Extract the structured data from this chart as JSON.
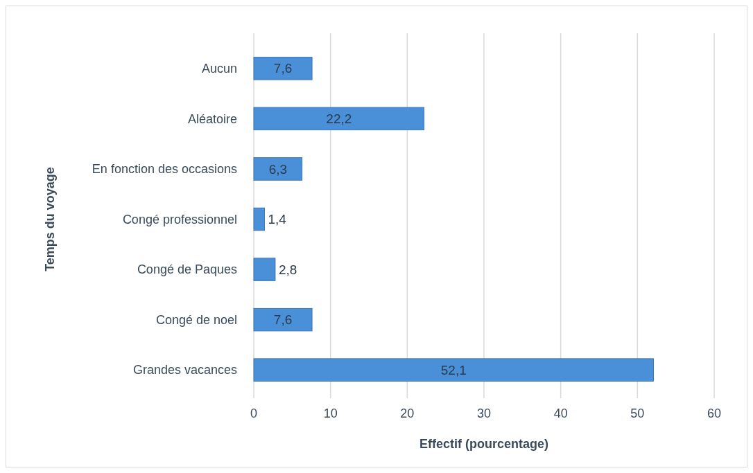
{
  "chart_data": {
    "type": "bar",
    "orientation": "horizontal",
    "xlabel": "Effectif (pourcentage)",
    "ylabel": "Temps du voyage",
    "categories": [
      "Aucun",
      "Aléatoire",
      "En fonction des occasions",
      "Congé professionnel",
      "Congé de Paques",
      "Congé de noel",
      "Grandes vacances"
    ],
    "values": [
      7.6,
      22.2,
      6.3,
      1.4,
      2.8,
      7.6,
      52.1
    ],
    "value_labels": [
      "7,6",
      "22,2",
      "6,3",
      "1,4",
      "2,8",
      "7,6",
      "52,1"
    ],
    "color": "#4a90d9",
    "xlim": [
      0,
      60
    ],
    "xticks": [
      0,
      10,
      20,
      30,
      40,
      50,
      60
    ],
    "grid": "x"
  }
}
